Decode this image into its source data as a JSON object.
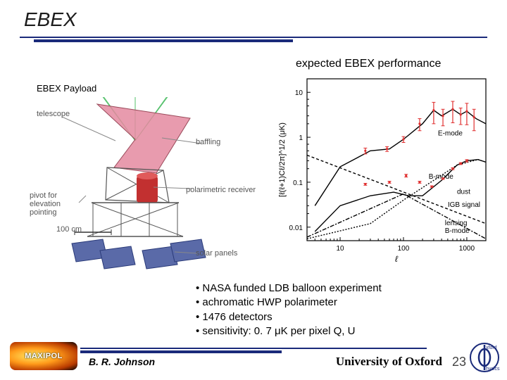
{
  "title": "EBEX",
  "chart_caption": "expected EBEX performance",
  "payload_label": "EBEX Payload",
  "payload": {
    "annotations": {
      "telescope": "telescope",
      "pivot": "pivot for elevation pointing",
      "scale": "100 cm",
      "baffling": "baffling",
      "receiver": "polarimetric receiver",
      "panels": "solar panels"
    },
    "colors": {
      "baffle": "#e48aa0",
      "cryostat": "#c23030",
      "frame": "#555555",
      "beam": "#53c06a",
      "panel": "#5a6aa8"
    }
  },
  "chart": {
    "type": "line",
    "xlabel": "ℓ",
    "ylabel": "[ℓ(ℓ+1)Cℓ/2π]^{1/2} (μK)",
    "xlim": [
      3,
      2000
    ],
    "ylim": [
      0.005,
      20
    ],
    "xscale": "log",
    "yscale": "log",
    "xticks": [
      10,
      100,
      1000
    ],
    "yticks": [
      0.01,
      0.1,
      1,
      10
    ],
    "curves": {
      "e_mode": {
        "label": "E-mode",
        "color": "#000000",
        "dash": "solid",
        "pts": [
          [
            4,
            0.03
          ],
          [
            10,
            0.22
          ],
          [
            30,
            0.5
          ],
          [
            60,
            0.55
          ],
          [
            100,
            0.9
          ],
          [
            200,
            2.0
          ],
          [
            300,
            4.0
          ],
          [
            400,
            3.0
          ],
          [
            600,
            4.2
          ],
          [
            800,
            3.2
          ],
          [
            1000,
            3.8
          ],
          [
            1400,
            2.6
          ],
          [
            2000,
            2.0
          ]
        ]
      },
      "b_mode": {
        "label": "B-mode",
        "color": "#000000",
        "dash": "solid",
        "pts": [
          [
            4,
            0.008
          ],
          [
            10,
            0.03
          ],
          [
            30,
            0.05
          ],
          [
            70,
            0.06
          ],
          [
            120,
            0.05
          ],
          [
            200,
            0.05
          ],
          [
            400,
            0.11
          ],
          [
            700,
            0.24
          ],
          [
            1000,
            0.3
          ],
          [
            1500,
            0.32
          ],
          [
            2000,
            0.28
          ]
        ]
      },
      "dust": {
        "label": "dust",
        "color": "#000000",
        "dash": "4 3",
        "pts": [
          [
            3,
            0.4
          ],
          [
            2000,
            0.012
          ]
        ]
      },
      "igb": {
        "label": "IGB signal",
        "color": "#000000",
        "dash": "6 2 2 2",
        "pts": [
          [
            3,
            0.006
          ],
          [
            100,
            0.055
          ],
          [
            2000,
            0.0055
          ]
        ]
      },
      "lensing": {
        "label": "lensing B-mode",
        "color": "#000000",
        "dash": "2 2",
        "pts": [
          [
            3,
            0.0055
          ],
          [
            30,
            0.012
          ],
          [
            100,
            0.04
          ],
          [
            300,
            0.11
          ],
          [
            700,
            0.24
          ],
          [
            1500,
            0.32
          ],
          [
            2000,
            0.28
          ]
        ]
      }
    },
    "errorbars": {
      "color": "#e03030",
      "e": [
        [
          25,
          0.5,
          0.15
        ],
        [
          55,
          0.55,
          0.12
        ],
        [
          100,
          0.9,
          0.15
        ],
        [
          180,
          2.0,
          0.3
        ],
        [
          300,
          4.0,
          0.5
        ],
        [
          420,
          3.0,
          0.4
        ],
        [
          600,
          4.2,
          0.5
        ],
        [
          800,
          3.2,
          0.4
        ],
        [
          1000,
          3.8,
          0.5
        ],
        [
          1300,
          2.8,
          0.5
        ]
      ],
      "b": [
        [
          25,
          0.09,
          0.05
        ],
        [
          60,
          0.1,
          0.05
        ],
        [
          110,
          0.14,
          0.07
        ],
        [
          180,
          0.1,
          0.05
        ],
        [
          280,
          0.08,
          0.04
        ],
        [
          420,
          0.12,
          0.04
        ],
        [
          600,
          0.2,
          0.05
        ],
        [
          800,
          0.26,
          0.05
        ],
        [
          1000,
          0.3,
          0.06
        ]
      ]
    },
    "background": "#ffffff",
    "axis_color": "#000000",
    "font_size": 10
  },
  "bullets": [
    "NASA funded LDB balloon experiment",
    "achromatic HWP polarimeter",
    "1476 detectors",
    "sensitivity: 0. 7 μK per pixel Q, U"
  ],
  "footer": {
    "logo_text": "MAXIPOL",
    "author": "B. R. Johnson",
    "university": "University of Oxford",
    "page": "23",
    "phi": {
      "outer": "#1a2a7a",
      "top": "xford",
      "bottom": "hysics"
    }
  }
}
